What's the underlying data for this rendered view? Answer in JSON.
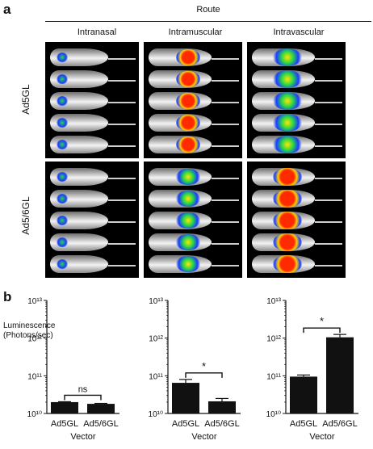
{
  "panel_a": {
    "label": "a",
    "route_title": "Route",
    "columns": [
      "Intranasal",
      "Intramuscular",
      "Intravascular"
    ],
    "rows": [
      "Ad5GL",
      "Ad5/6GL"
    ]
  },
  "panel_b": {
    "label": "b",
    "ylabel_line1": "Luminescence",
    "ylabel_line2": "(Photons/sec)"
  },
  "colors": {
    "bar": "#111111",
    "background": "#000000",
    "signal_low": "#1a3cff",
    "signal_mid": "#27d64a",
    "signal_high": "#ff2a00"
  },
  "chart_data": [
    {
      "type": "bar",
      "categories": [
        "Ad5GL",
        "Ad5/6GL"
      ],
      "values": [
        20000000000.0,
        18000000000.0
      ],
      "errors": [
        500000000.0,
        500000000.0
      ],
      "xlabel": "Vector",
      "ylabel": "Luminescence (Photons/sec)",
      "yscale": "log",
      "ylim": [
        10000000000.0,
        10000000000000.0
      ],
      "yticks": [
        "10¹⁰",
        "10¹¹",
        "10¹²",
        "10¹³"
      ],
      "significance": "ns"
    },
    {
      "type": "bar",
      "categories": [
        "Ad5GL",
        "Ad5/6GL"
      ],
      "values": [
        65000000000.0,
        21000000000.0
      ],
      "errors": [
        15000000000.0,
        4000000000.0
      ],
      "xlabel": "Vector",
      "ylabel": "Luminescence (Photons/sec)",
      "yscale": "log",
      "ylim": [
        10000000000.0,
        10000000000000.0
      ],
      "yticks": [
        "10¹⁰",
        "10¹¹",
        "10¹²",
        "10¹³"
      ],
      "significance": "*"
    },
    {
      "type": "bar",
      "categories": [
        "Ad5GL",
        "Ad5/6GL"
      ],
      "values": [
        95000000000.0,
        1050000000000.0
      ],
      "errors": [
        10000000000.0,
        200000000000.0
      ],
      "xlabel": "Vector",
      "ylabel": "Luminescence (Photons/sec)",
      "yscale": "log",
      "ylim": [
        10000000000.0,
        10000000000000.0
      ],
      "yticks": [
        "10¹⁰",
        "10¹¹",
        "10¹²",
        "10¹³"
      ],
      "significance": "*"
    }
  ]
}
